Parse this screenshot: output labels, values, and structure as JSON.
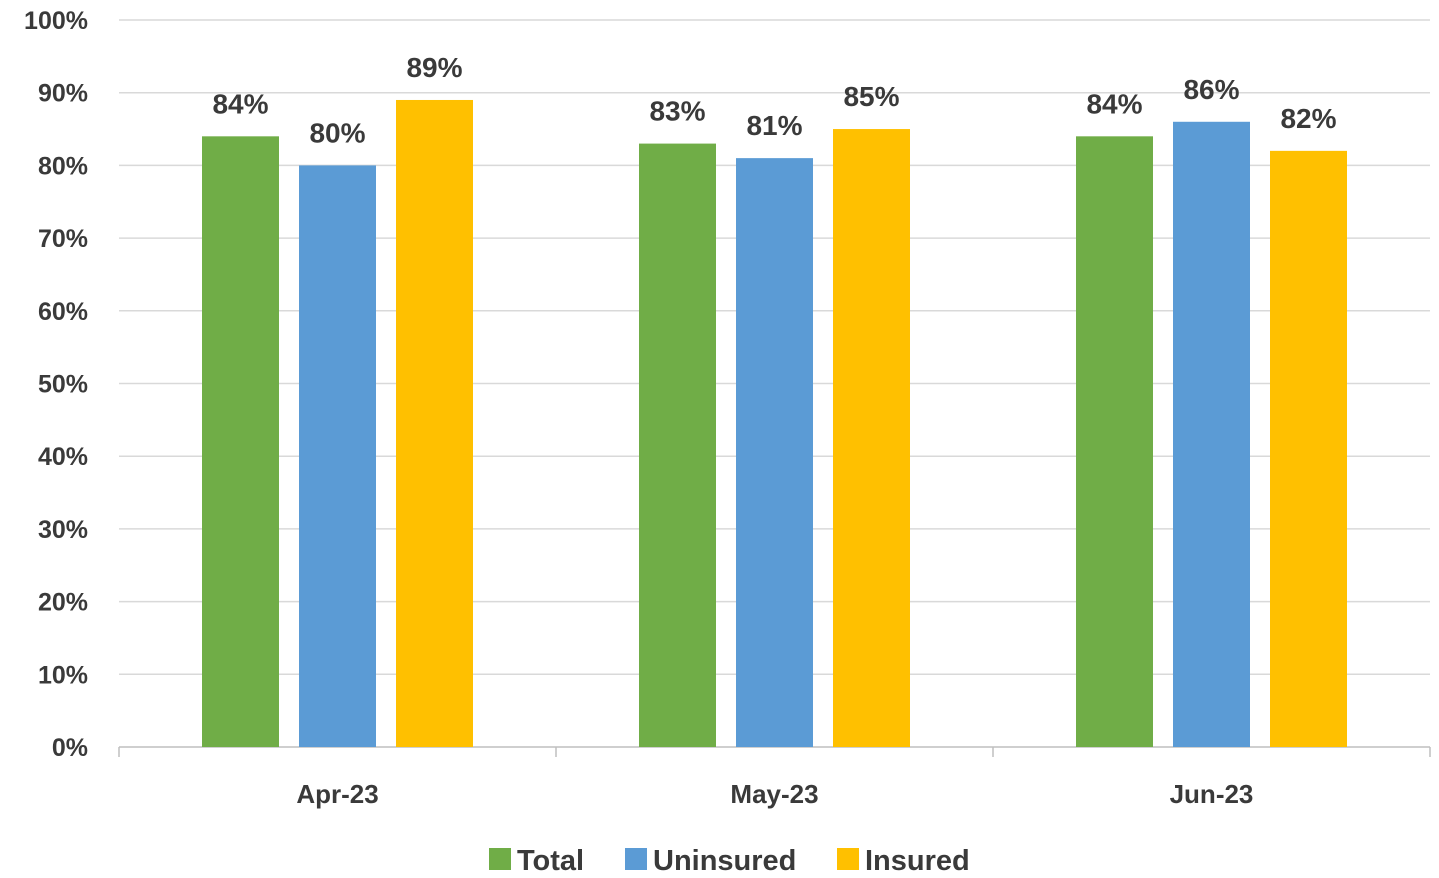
{
  "chart_data": {
    "type": "bar",
    "categories": [
      "Apr-23",
      "May-23",
      "Jun-23"
    ],
    "series": [
      {
        "name": "Total",
        "values": [
          84,
          83,
          84
        ],
        "color": "#70ad47"
      },
      {
        "name": "Uninsured",
        "values": [
          80,
          81,
          86
        ],
        "color": "#5b9bd5"
      },
      {
        "name": "Insured",
        "values": [
          89,
          85,
          82
        ],
        "color": "#ffc000"
      }
    ],
    "data_labels": [
      [
        "84%",
        "83%",
        "84%"
      ],
      [
        "80%",
        "81%",
        "86%"
      ],
      [
        "89%",
        "85%",
        "82%"
      ]
    ],
    "y_ticks": [
      "0%",
      "10%",
      "20%",
      "30%",
      "40%",
      "50%",
      "60%",
      "70%",
      "80%",
      "90%",
      "100%"
    ],
    "ylim": [
      0,
      100
    ],
    "grid": true,
    "legend": "bottom",
    "title": "",
    "xlabel": "",
    "ylabel": ""
  }
}
